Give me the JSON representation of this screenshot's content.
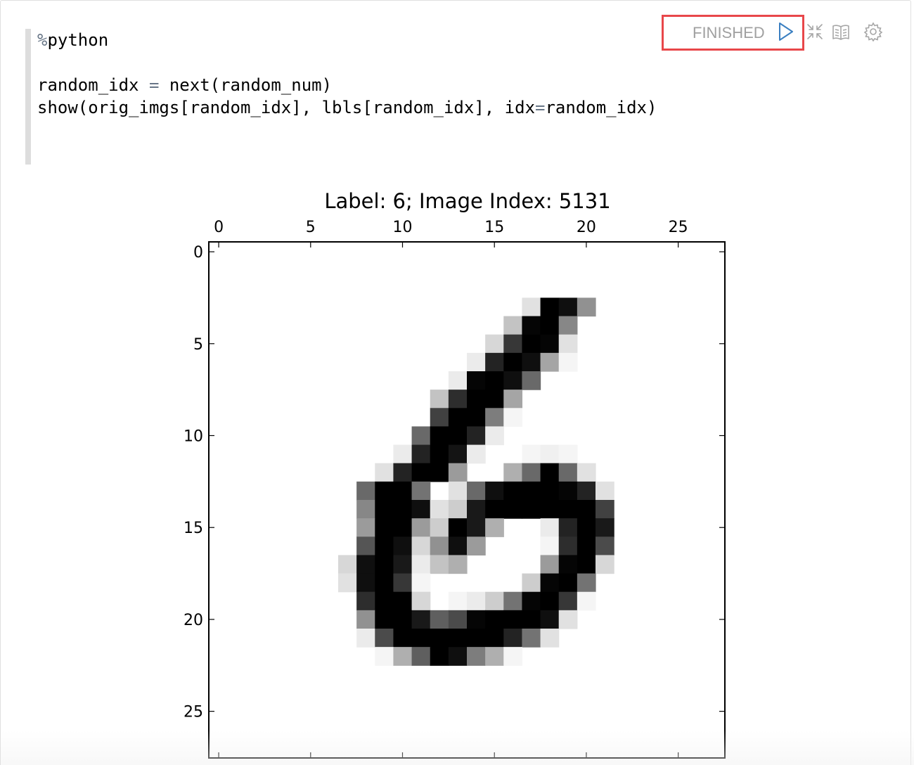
{
  "code": {
    "interpreter": "%python",
    "lines": [
      "random_idx = next(random_num)",
      "show(orig_imgs[random_idx], lbls[random_idx], idx=random_idx)"
    ]
  },
  "status": {
    "text": "FINISHED",
    "highlight_color": "#e8474a"
  },
  "toolbar": {
    "icons": [
      "run-icon",
      "collapse-icon",
      "book-icon",
      "settings-icon"
    ]
  },
  "chart_data": {
    "type": "heatmap",
    "title": "Label: 6; Image Index: 5131",
    "label": 6,
    "image_index": 5131,
    "colormap": "gray_r",
    "rows": 28,
    "cols": 28,
    "x_ticks": [
      0,
      5,
      10,
      15,
      20,
      25
    ],
    "y_ticks": [
      0,
      5,
      10,
      15,
      20,
      25
    ],
    "pixels_note": "approximate grayscale intensity 0-255, row-major, only non-zero cells listed as [row, col, value]",
    "pixels": [
      [
        3,
        17,
        30
      ],
      [
        3,
        18,
        255
      ],
      [
        3,
        19,
        240
      ],
      [
        3,
        20,
        110
      ],
      [
        4,
        16,
        60
      ],
      [
        4,
        17,
        250
      ],
      [
        4,
        18,
        255
      ],
      [
        4,
        19,
        120
      ],
      [
        5,
        15,
        40
      ],
      [
        5,
        16,
        200
      ],
      [
        5,
        17,
        255
      ],
      [
        5,
        18,
        250
      ],
      [
        5,
        19,
        30
      ],
      [
        6,
        14,
        20
      ],
      [
        6,
        15,
        220
      ],
      [
        6,
        16,
        255
      ],
      [
        6,
        17,
        240
      ],
      [
        6,
        18,
        90
      ],
      [
        6,
        19,
        10
      ],
      [
        7,
        13,
        20
      ],
      [
        7,
        14,
        250
      ],
      [
        7,
        15,
        255
      ],
      [
        7,
        16,
        240
      ],
      [
        7,
        17,
        150
      ],
      [
        8,
        12,
        60
      ],
      [
        8,
        13,
        210
      ],
      [
        8,
        14,
        255
      ],
      [
        8,
        15,
        255
      ],
      [
        8,
        16,
        90
      ],
      [
        9,
        12,
        190
      ],
      [
        9,
        13,
        255
      ],
      [
        9,
        14,
        255
      ],
      [
        9,
        15,
        130
      ],
      [
        9,
        16,
        10
      ],
      [
        10,
        11,
        150
      ],
      [
        10,
        12,
        255
      ],
      [
        10,
        13,
        255
      ],
      [
        10,
        14,
        220
      ],
      [
        10,
        15,
        20
      ],
      [
        11,
        10,
        20
      ],
      [
        11,
        11,
        220
      ],
      [
        11,
        12,
        255
      ],
      [
        11,
        13,
        235
      ],
      [
        11,
        14,
        20
      ],
      [
        11,
        17,
        10
      ],
      [
        11,
        18,
        15
      ],
      [
        11,
        19,
        10
      ],
      [
        12,
        9,
        30
      ],
      [
        12,
        10,
        220
      ],
      [
        12,
        11,
        255
      ],
      [
        12,
        12,
        255
      ],
      [
        12,
        13,
        100
      ],
      [
        12,
        16,
        80
      ],
      [
        12,
        17,
        150
      ],
      [
        12,
        18,
        255
      ],
      [
        12,
        19,
        150
      ],
      [
        12,
        20,
        30
      ],
      [
        13,
        8,
        150
      ],
      [
        13,
        9,
        255
      ],
      [
        13,
        10,
        255
      ],
      [
        13,
        11,
        140
      ],
      [
        13,
        13,
        30
      ],
      [
        13,
        14,
        150
      ],
      [
        13,
        15,
        240
      ],
      [
        13,
        16,
        255
      ],
      [
        13,
        17,
        255
      ],
      [
        13,
        18,
        255
      ],
      [
        13,
        19,
        250
      ],
      [
        13,
        20,
        220
      ],
      [
        13,
        21,
        30
      ],
      [
        14,
        8,
        120
      ],
      [
        14,
        9,
        255
      ],
      [
        14,
        10,
        255
      ],
      [
        14,
        11,
        240
      ],
      [
        14,
        12,
        30
      ],
      [
        14,
        13,
        50
      ],
      [
        14,
        14,
        230
      ],
      [
        14,
        15,
        255
      ],
      [
        14,
        16,
        255
      ],
      [
        14,
        17,
        255
      ],
      [
        14,
        18,
        255
      ],
      [
        14,
        19,
        255
      ],
      [
        14,
        20,
        255
      ],
      [
        14,
        21,
        190
      ],
      [
        15,
        8,
        100
      ],
      [
        15,
        9,
        255
      ],
      [
        15,
        10,
        255
      ],
      [
        15,
        11,
        100
      ],
      [
        15,
        12,
        50
      ],
      [
        15,
        13,
        255
      ],
      [
        15,
        14,
        230
      ],
      [
        15,
        15,
        80
      ],
      [
        15,
        18,
        20
      ],
      [
        15,
        19,
        220
      ],
      [
        15,
        20,
        255
      ],
      [
        15,
        21,
        230
      ],
      [
        16,
        8,
        170
      ],
      [
        16,
        9,
        255
      ],
      [
        16,
        10,
        240
      ],
      [
        16,
        11,
        40
      ],
      [
        16,
        12,
        110
      ],
      [
        16,
        13,
        240
      ],
      [
        16,
        14,
        100
      ],
      [
        16,
        18,
        10
      ],
      [
        16,
        19,
        210
      ],
      [
        16,
        20,
        255
      ],
      [
        16,
        21,
        180
      ],
      [
        17,
        7,
        40
      ],
      [
        17,
        8,
        240
      ],
      [
        17,
        9,
        255
      ],
      [
        17,
        10,
        230
      ],
      [
        17,
        11,
        20
      ],
      [
        17,
        12,
        60
      ],
      [
        17,
        13,
        80
      ],
      [
        17,
        18,
        100
      ],
      [
        17,
        19,
        250
      ],
      [
        17,
        20,
        255
      ],
      [
        17,
        21,
        40
      ],
      [
        18,
        7,
        30
      ],
      [
        18,
        8,
        240
      ],
      [
        18,
        9,
        255
      ],
      [
        18,
        10,
        200
      ],
      [
        18,
        11,
        10
      ],
      [
        18,
        17,
        50
      ],
      [
        18,
        18,
        250
      ],
      [
        18,
        19,
        255
      ],
      [
        18,
        20,
        140
      ],
      [
        19,
        8,
        210
      ],
      [
        19,
        9,
        255
      ],
      [
        19,
        10,
        255
      ],
      [
        19,
        11,
        40
      ],
      [
        19,
        13,
        10
      ],
      [
        19,
        14,
        20
      ],
      [
        19,
        15,
        50
      ],
      [
        19,
        16,
        140
      ],
      [
        19,
        17,
        250
      ],
      [
        19,
        18,
        255
      ],
      [
        19,
        19,
        200
      ],
      [
        19,
        20,
        10
      ],
      [
        20,
        8,
        110
      ],
      [
        20,
        9,
        255
      ],
      [
        20,
        10,
        255
      ],
      [
        20,
        11,
        230
      ],
      [
        20,
        12,
        160
      ],
      [
        20,
        13,
        180
      ],
      [
        20,
        14,
        250
      ],
      [
        20,
        15,
        255
      ],
      [
        20,
        16,
        255
      ],
      [
        20,
        17,
        255
      ],
      [
        20,
        18,
        240
      ],
      [
        20,
        19,
        30
      ],
      [
        21,
        8,
        20
      ],
      [
        21,
        9,
        180
      ],
      [
        21,
        10,
        255
      ],
      [
        21,
        11,
        255
      ],
      [
        21,
        12,
        255
      ],
      [
        21,
        13,
        255
      ],
      [
        21,
        14,
        255
      ],
      [
        21,
        15,
        255
      ],
      [
        21,
        16,
        220
      ],
      [
        21,
        17,
        140
      ],
      [
        21,
        18,
        30
      ],
      [
        22,
        9,
        10
      ],
      [
        22,
        10,
        80
      ],
      [
        22,
        11,
        160
      ],
      [
        22,
        12,
        255
      ],
      [
        22,
        13,
        240
      ],
      [
        22,
        14,
        130
      ],
      [
        22,
        15,
        80
      ],
      [
        22,
        16,
        10
      ]
    ]
  }
}
